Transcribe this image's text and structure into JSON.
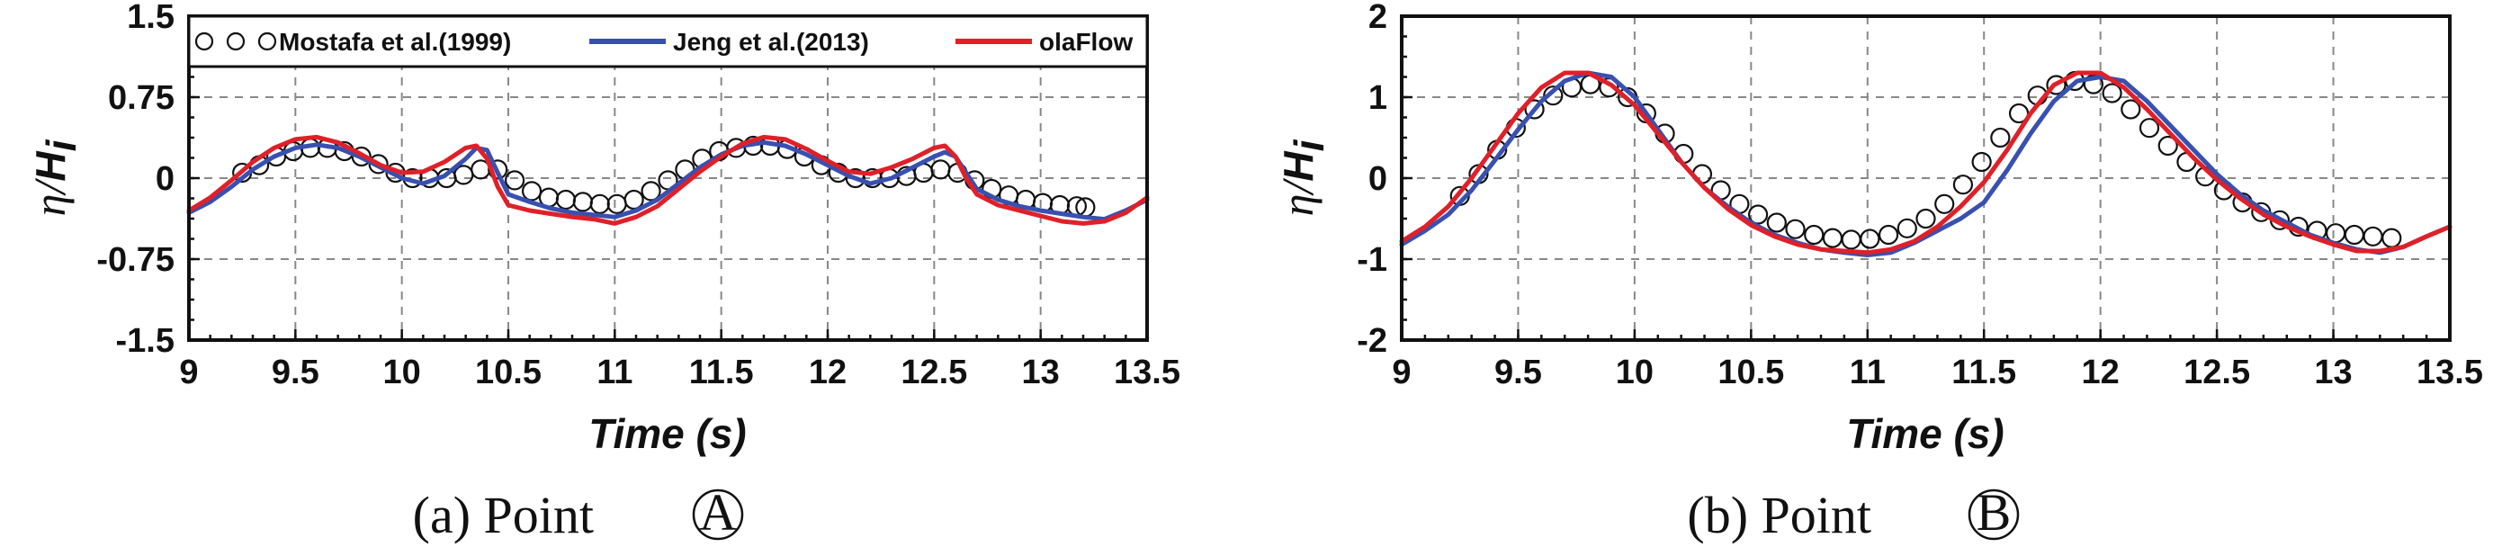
{
  "chart_data": [
    {
      "type": "line",
      "panel_caption": "(a)  Point",
      "point_symbol": "A",
      "xlabel": "Time (s)",
      "ylabel_main": "η/",
      "ylabel_sub": "H",
      "ylabel_subscript": "i",
      "xlim": [
        9,
        13.5
      ],
      "ylim": [
        -1.5,
        1.5
      ],
      "xticks": [
        9,
        9.5,
        10,
        10.5,
        11,
        11.5,
        12,
        12.5,
        13,
        13.5
      ],
      "xtick_labels": [
        "9",
        "9.5",
        "10",
        "10.5",
        "11",
        "11.5",
        "12",
        "12.5",
        "13",
        "13.5"
      ],
      "yticks": [
        1.5,
        0.75,
        0,
        -0.75,
        -1.5
      ],
      "ytick_labels": [
        "1.5",
        "0.75",
        "0",
        "-0.75",
        "-1.5"
      ],
      "legend": [
        "Mostafa et al.(1999)",
        "Jeng et al.(2013)",
        "olaFlow"
      ],
      "series": [
        {
          "name": "Mostafa et al.(1999)",
          "style": "marker",
          "color": "#111111",
          "x": [
            9.25,
            9.33,
            9.41,
            9.49,
            9.57,
            9.65,
            9.73,
            9.81,
            9.89,
            9.97,
            10.05,
            10.13,
            10.21,
            10.29,
            10.37,
            10.45,
            10.53,
            10.61,
            10.69,
            10.77,
            10.85,
            10.93,
            11.01,
            11.09,
            11.17,
            11.25,
            11.33,
            11.41,
            11.49,
            11.57,
            11.65,
            11.73,
            11.81,
            11.89,
            11.97,
            12.05,
            12.13,
            12.21,
            12.29,
            12.37,
            12.45,
            12.53,
            12.61,
            12.69,
            12.77,
            12.85,
            12.93,
            13.01,
            13.09,
            13.17,
            13.21
          ],
          "y": [
            0.05,
            0.12,
            0.2,
            0.25,
            0.28,
            0.28,
            0.25,
            0.2,
            0.13,
            0.05,
            0.0,
            0.0,
            0.0,
            0.03,
            0.08,
            0.08,
            -0.02,
            -0.12,
            -0.18,
            -0.2,
            -0.22,
            -0.24,
            -0.24,
            -0.2,
            -0.12,
            -0.02,
            0.08,
            0.18,
            0.25,
            0.28,
            0.3,
            0.3,
            0.27,
            0.2,
            0.12,
            0.05,
            0.0,
            0.0,
            0.0,
            0.02,
            0.05,
            0.08,
            0.05,
            -0.02,
            -0.1,
            -0.16,
            -0.2,
            -0.23,
            -0.25,
            -0.26,
            -0.27
          ]
        },
        {
          "name": "Jeng et al.(2013)",
          "style": "line",
          "color": "#3850b0",
          "x": [
            9.0,
            9.1,
            9.2,
            9.3,
            9.4,
            9.5,
            9.6,
            9.7,
            9.8,
            9.9,
            10.0,
            10.1,
            10.2,
            10.3,
            10.35,
            10.4,
            10.45,
            10.5,
            10.6,
            10.7,
            10.8,
            10.9,
            11.0,
            11.1,
            11.2,
            11.3,
            11.4,
            11.5,
            11.6,
            11.7,
            11.8,
            11.9,
            12.0,
            12.1,
            12.2,
            12.3,
            12.4,
            12.5,
            12.55,
            12.6,
            12.65,
            12.7,
            12.8,
            12.9,
            13.0,
            13.1,
            13.2,
            13.3,
            13.4,
            13.5
          ],
          "y": [
            -0.32,
            -0.22,
            -0.08,
            0.08,
            0.2,
            0.28,
            0.31,
            0.28,
            0.2,
            0.1,
            0.0,
            -0.05,
            0.02,
            0.18,
            0.28,
            0.26,
            0.05,
            -0.15,
            -0.22,
            -0.28,
            -0.32,
            -0.34,
            -0.36,
            -0.3,
            -0.2,
            -0.05,
            0.1,
            0.22,
            0.3,
            0.33,
            0.3,
            0.22,
            0.12,
            0.02,
            -0.05,
            0.0,
            0.1,
            0.2,
            0.24,
            0.2,
            0.05,
            -0.1,
            -0.2,
            -0.26,
            -0.3,
            -0.33,
            -0.36,
            -0.38,
            -0.3,
            -0.2
          ]
        },
        {
          "name": "olaFlow",
          "style": "line",
          "color": "#e02028",
          "x": [
            9.0,
            9.1,
            9.2,
            9.3,
            9.4,
            9.5,
            9.6,
            9.7,
            9.8,
            9.9,
            10.0,
            10.1,
            10.2,
            10.3,
            10.35,
            10.4,
            10.45,
            10.5,
            10.6,
            10.7,
            10.8,
            10.9,
            11.0,
            11.1,
            11.2,
            11.3,
            11.4,
            11.5,
            11.6,
            11.7,
            11.8,
            11.9,
            12.0,
            12.1,
            12.2,
            12.3,
            12.4,
            12.5,
            12.55,
            12.6,
            12.65,
            12.7,
            12.8,
            12.9,
            13.0,
            13.1,
            13.2,
            13.3,
            13.4,
            13.5
          ],
          "y": [
            -0.3,
            -0.18,
            -0.02,
            0.15,
            0.28,
            0.36,
            0.38,
            0.33,
            0.23,
            0.12,
            0.05,
            0.06,
            0.15,
            0.28,
            0.3,
            0.18,
            -0.08,
            -0.25,
            -0.3,
            -0.33,
            -0.36,
            -0.38,
            -0.42,
            -0.36,
            -0.26,
            -0.1,
            0.06,
            0.2,
            0.32,
            0.38,
            0.36,
            0.27,
            0.16,
            0.06,
            0.04,
            0.1,
            0.18,
            0.28,
            0.3,
            0.2,
            0.0,
            -0.15,
            -0.25,
            -0.3,
            -0.35,
            -0.4,
            -0.42,
            -0.4,
            -0.32,
            -0.18
          ]
        }
      ]
    },
    {
      "type": "line",
      "panel_caption": "(b)  Point",
      "point_symbol": "B",
      "xlabel": "Time (s)",
      "ylabel_main": "η/",
      "ylabel_sub": "H",
      "ylabel_subscript": "i",
      "xlim": [
        9,
        13.5
      ],
      "ylim": [
        -2,
        2
      ],
      "xticks": [
        9,
        9.5,
        10,
        10.5,
        11,
        11.5,
        12,
        12.5,
        13,
        13.5
      ],
      "xtick_labels": [
        "9",
        "9.5",
        "10",
        "10.5",
        "11",
        "11.5",
        "12",
        "12.5",
        "13",
        "13.5"
      ],
      "yticks": [
        2,
        1,
        0,
        -1,
        -2
      ],
      "ytick_labels": [
        "2",
        "1",
        "0",
        "-1",
        "-2"
      ],
      "legend": [],
      "series": [
        {
          "name": "Mostafa et al.(1999)",
          "style": "marker",
          "color": "#111111",
          "x": [
            9.25,
            9.33,
            9.41,
            9.49,
            9.57,
            9.65,
            9.73,
            9.81,
            9.89,
            9.97,
            10.05,
            10.13,
            10.21,
            10.29,
            10.37,
            10.45,
            10.53,
            10.61,
            10.69,
            10.77,
            10.85,
            10.93,
            11.01,
            11.09,
            11.17,
            11.25,
            11.33,
            11.41,
            11.49,
            11.57,
            11.65,
            11.73,
            11.81,
            11.89,
            11.97,
            12.05,
            12.13,
            12.21,
            12.29,
            12.37,
            12.45,
            12.53,
            12.61,
            12.69,
            12.77,
            12.85,
            12.93,
            13.01,
            13.09,
            13.17,
            13.25
          ],
          "y": [
            -0.22,
            0.05,
            0.35,
            0.62,
            0.85,
            1.02,
            1.12,
            1.16,
            1.12,
            1.0,
            0.8,
            0.55,
            0.3,
            0.05,
            -0.15,
            -0.32,
            -0.45,
            -0.55,
            -0.63,
            -0.7,
            -0.74,
            -0.76,
            -0.75,
            -0.7,
            -0.62,
            -0.5,
            -0.32,
            -0.08,
            0.2,
            0.5,
            0.8,
            1.02,
            1.15,
            1.2,
            1.16,
            1.05,
            0.85,
            0.62,
            0.4,
            0.2,
            0.02,
            -0.15,
            -0.3,
            -0.42,
            -0.52,
            -0.6,
            -0.65,
            -0.68,
            -0.7,
            -0.72,
            -0.74
          ]
        },
        {
          "name": "Jeng et al.(2013)",
          "style": "line",
          "color": "#3850b0",
          "x": [
            9.0,
            9.1,
            9.2,
            9.3,
            9.4,
            9.5,
            9.6,
            9.7,
            9.8,
            9.9,
            10.0,
            10.1,
            10.2,
            10.3,
            10.4,
            10.5,
            10.6,
            10.7,
            10.8,
            10.9,
            11.0,
            11.1,
            11.2,
            11.3,
            11.4,
            11.5,
            11.6,
            11.7,
            11.8,
            11.9,
            12.0,
            12.1,
            12.2,
            12.3,
            12.4,
            12.5,
            12.6,
            12.7,
            12.8,
            12.9,
            13.0,
            13.1,
            13.2,
            13.3,
            13.4,
            13.5
          ],
          "y": [
            -0.82,
            -0.65,
            -0.45,
            -0.15,
            0.22,
            0.6,
            0.95,
            1.2,
            1.3,
            1.25,
            1.0,
            0.6,
            0.2,
            -0.12,
            -0.35,
            -0.55,
            -0.7,
            -0.8,
            -0.88,
            -0.92,
            -0.95,
            -0.92,
            -0.8,
            -0.65,
            -0.5,
            -0.3,
            0.1,
            0.55,
            0.95,
            1.2,
            1.25,
            1.2,
            0.95,
            0.65,
            0.35,
            0.05,
            -0.2,
            -0.4,
            -0.55,
            -0.7,
            -0.8,
            -0.88,
            -0.92,
            -0.85,
            -0.72,
            -0.6
          ]
        },
        {
          "name": "olaFlow",
          "style": "line",
          "color": "#e02028",
          "x": [
            9.0,
            9.1,
            9.2,
            9.3,
            9.4,
            9.5,
            9.6,
            9.7,
            9.8,
            9.9,
            10.0,
            10.1,
            10.2,
            10.3,
            10.4,
            10.5,
            10.6,
            10.7,
            10.8,
            10.9,
            11.0,
            11.1,
            11.2,
            11.3,
            11.4,
            11.5,
            11.6,
            11.7,
            11.8,
            11.9,
            12.0,
            12.1,
            12.2,
            12.3,
            12.4,
            12.5,
            12.6,
            12.7,
            12.8,
            12.9,
            13.0,
            13.1,
            13.2,
            13.3,
            13.4,
            13.5
          ],
          "y": [
            -0.78,
            -0.6,
            -0.35,
            0.0,
            0.4,
            0.8,
            1.12,
            1.3,
            1.3,
            1.15,
            0.9,
            0.55,
            0.2,
            -0.12,
            -0.38,
            -0.58,
            -0.72,
            -0.82,
            -0.88,
            -0.9,
            -0.92,
            -0.88,
            -0.78,
            -0.6,
            -0.35,
            -0.05,
            0.35,
            0.8,
            1.15,
            1.3,
            1.3,
            1.12,
            0.85,
            0.55,
            0.25,
            -0.02,
            -0.25,
            -0.45,
            -0.6,
            -0.72,
            -0.82,
            -0.9,
            -0.9,
            -0.85,
            -0.72,
            -0.6
          ]
        }
      ]
    }
  ]
}
